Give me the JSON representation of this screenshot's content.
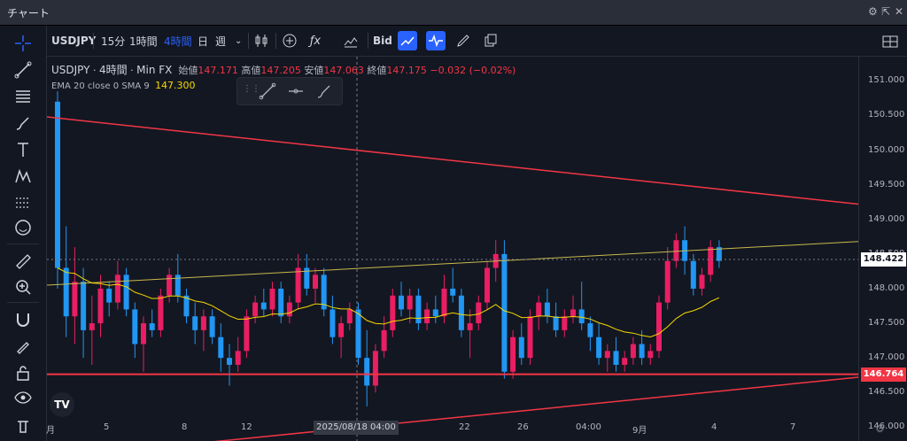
{
  "window": {
    "title": "チャート"
  },
  "toolbar": {
    "symbol": "USDJPY",
    "intervals": [
      {
        "label": "15分",
        "active": false
      },
      {
        "label": "1時間",
        "active": false
      },
      {
        "label": "4時間",
        "active": true
      },
      {
        "label": "日",
        "active": false
      },
      {
        "label": "週",
        "active": false
      }
    ],
    "bid_label": "Bid"
  },
  "legend": {
    "symbol": "USDJPY",
    "interval": "4時間",
    "source": "Min FX",
    "open_label": "始値",
    "open": "147.171",
    "high_label": "高値",
    "high": "147.205",
    "low_label": "安値",
    "low": "147.063",
    "close_label": "終値",
    "close": "147.175",
    "change": "−0.032 (−0.02%)"
  },
  "indicator": {
    "label": "EMA 20 close 0 SMA 9",
    "value": "147.300"
  },
  "price_axis": {
    "ticks": [
      "151.000",
      "150.500",
      "150.000",
      "149.500",
      "149.000",
      "148.500",
      "148.000",
      "147.500",
      "147.000",
      "146.500",
      "146.000"
    ],
    "current_price": "148.422",
    "line_price": "146.764"
  },
  "time_axis": {
    "labels": [
      "月",
      "5",
      "8",
      "12",
      "22",
      "26",
      "04:00",
      "9月",
      "4",
      "7"
    ],
    "crosshair_label": "2025/08/18 04:00"
  },
  "colors": {
    "up": "#e91e63",
    "down": "#2196f3",
    "ema": "#f5d800",
    "trend": "#f23645",
    "accent": "#2962ff"
  },
  "chart_data": {
    "type": "candlestick",
    "ylim": [
      145.8,
      151.35
    ],
    "candles": [
      [
        150.7,
        150.85,
        148.0,
        148.3
      ],
      [
        148.3,
        148.9,
        147.3,
        147.6
      ],
      [
        147.6,
        148.6,
        147.2,
        148.1
      ],
      [
        148.1,
        148.3,
        147.0,
        147.4
      ],
      [
        147.4,
        147.9,
        146.9,
        147.5
      ],
      [
        147.5,
        148.2,
        147.3,
        148.0
      ],
      [
        148.0,
        148.1,
        147.6,
        147.8
      ],
      [
        147.8,
        148.4,
        147.7,
        148.2
      ],
      [
        148.2,
        148.3,
        147.6,
        147.7
      ],
      [
        147.7,
        147.8,
        147.0,
        147.2
      ],
      [
        147.2,
        147.6,
        146.8,
        147.5
      ],
      [
        147.5,
        147.7,
        147.3,
        147.4
      ],
      [
        147.4,
        148.0,
        147.3,
        147.9
      ],
      [
        147.9,
        148.3,
        147.8,
        148.2
      ],
      [
        148.2,
        148.5,
        147.8,
        147.9
      ],
      [
        147.9,
        148.0,
        147.5,
        147.6
      ],
      [
        147.6,
        147.8,
        147.2,
        147.4
      ],
      [
        147.4,
        147.7,
        147.1,
        147.6
      ],
      [
        147.6,
        147.7,
        147.2,
        147.3
      ],
      [
        147.3,
        147.5,
        146.8,
        147.0
      ],
      [
        147.0,
        147.2,
        146.6,
        146.9
      ],
      [
        146.9,
        147.3,
        146.8,
        147.1
      ],
      [
        147.1,
        147.7,
        147.0,
        147.6
      ],
      [
        147.6,
        147.9,
        147.5,
        147.8
      ],
      [
        147.8,
        148.0,
        147.6,
        147.7
      ],
      [
        147.7,
        148.1,
        147.6,
        148.0
      ],
      [
        148.0,
        148.1,
        147.5,
        147.6
      ],
      [
        147.6,
        147.9,
        147.5,
        147.8
      ],
      [
        147.8,
        148.5,
        147.7,
        148.3
      ],
      [
        148.3,
        148.5,
        147.9,
        148.0
      ],
      [
        148.0,
        148.3,
        147.8,
        148.2
      ],
      [
        148.2,
        148.3,
        147.6,
        147.7
      ],
      [
        147.7,
        147.9,
        147.2,
        147.3
      ],
      [
        147.3,
        147.6,
        147.0,
        147.5
      ],
      [
        147.5,
        147.8,
        147.4,
        147.7
      ],
      [
        147.7,
        147.8,
        146.9,
        147.0
      ],
      [
        147.0,
        147.4,
        146.3,
        146.6
      ],
      [
        146.6,
        147.2,
        146.5,
        147.1
      ],
      [
        147.1,
        147.6,
        147.0,
        147.4
      ],
      [
        147.4,
        148.0,
        147.3,
        147.9
      ],
      [
        147.9,
        148.1,
        147.6,
        147.7
      ],
      [
        147.7,
        148.0,
        147.5,
        147.9
      ],
      [
        147.9,
        148.0,
        147.4,
        147.5
      ],
      [
        147.5,
        147.8,
        147.4,
        147.7
      ],
      [
        147.7,
        147.9,
        147.5,
        147.6
      ],
      [
        147.6,
        148.2,
        147.5,
        148.0
      ],
      [
        148.0,
        148.3,
        147.8,
        147.9
      ],
      [
        147.9,
        148.0,
        147.3,
        147.4
      ],
      [
        147.4,
        147.7,
        147.0,
        147.5
      ],
      [
        147.5,
        147.9,
        147.4,
        147.8
      ],
      [
        147.8,
        148.4,
        147.7,
        148.3
      ],
      [
        148.3,
        148.7,
        148.1,
        148.5
      ],
      [
        148.5,
        148.7,
        146.7,
        146.8
      ],
      [
        146.8,
        147.4,
        146.7,
        147.3
      ],
      [
        147.3,
        147.5,
        146.9,
        147.0
      ],
      [
        147.0,
        147.7,
        146.9,
        147.6
      ],
      [
        147.6,
        147.9,
        147.4,
        147.8
      ],
      [
        147.8,
        148.0,
        147.5,
        147.6
      ],
      [
        147.6,
        147.8,
        147.3,
        147.4
      ],
      [
        147.4,
        147.7,
        147.3,
        147.6
      ],
      [
        147.6,
        147.9,
        147.5,
        147.7
      ],
      [
        147.7,
        148.1,
        147.4,
        147.5
      ],
      [
        147.5,
        147.6,
        147.1,
        147.3
      ],
      [
        147.3,
        147.5,
        146.9,
        147.0
      ],
      [
        147.0,
        147.2,
        146.8,
        147.1
      ],
      [
        147.1,
        147.3,
        146.8,
        146.9
      ],
      [
        146.9,
        147.1,
        146.8,
        147.0
      ],
      [
        147.0,
        147.3,
        146.9,
        147.2
      ],
      [
        147.2,
        147.4,
        146.9,
        147.0
      ],
      [
        147.0,
        147.2,
        146.9,
        147.1
      ],
      [
        147.1,
        147.9,
        147.0,
        147.8
      ],
      [
        147.8,
        148.6,
        147.7,
        148.4
      ],
      [
        148.4,
        148.8,
        148.3,
        148.7
      ],
      [
        148.7,
        148.9,
        148.2,
        148.4
      ],
      [
        148.4,
        148.5,
        147.9,
        148.0
      ],
      [
        148.0,
        148.3,
        147.9,
        148.2
      ],
      [
        148.2,
        148.7,
        148.1,
        148.6
      ],
      [
        148.6,
        148.7,
        148.3,
        148.4
      ]
    ],
    "trendlines": [
      {
        "name": "upper",
        "from": 150.48,
        "to": 149.22
      },
      {
        "name": "lower",
        "from": 145.55,
        "to": 146.72
      },
      {
        "name": "mid",
        "from": 148.05,
        "to": 148.68
      }
    ]
  }
}
